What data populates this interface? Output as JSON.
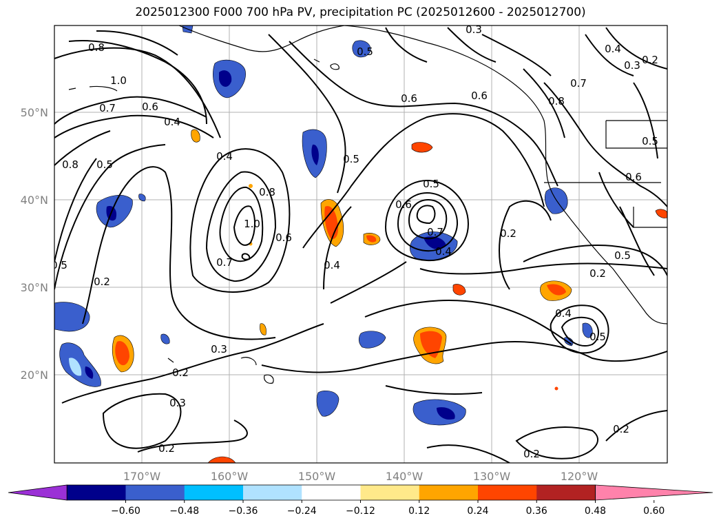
{
  "title": "2025012300 F000 700 hPa PV, precipitation PC (2025012600 - 2025012700)",
  "lat_labels": [
    "50°N",
    "40°N",
    "30°N",
    "20°N"
  ],
  "lon_labels": [
    "170°W",
    "160°W",
    "150°W",
    "140°W",
    "130°W",
    "120°W"
  ],
  "contour_labels": [
    "0.8",
    "1.0",
    "0.7",
    "0.6",
    "0.4",
    "0.8",
    "0.5",
    "0.4",
    "0.8",
    "1.0",
    "0.6",
    "0.7",
    "0.5",
    "0.6",
    "0.6",
    "0.5",
    "0.6",
    "0.7",
    "0.4",
    "0.4",
    "0.2",
    "0.3",
    "0.2",
    "0.3",
    "0.2",
    "0.5",
    "0.2",
    "0.7",
    "0.8",
    "0.4",
    "0.3",
    "0.2",
    "0.5",
    "0.6",
    "0.2",
    "0.4",
    "0.5",
    "0.2",
    "0.2",
    "0.3",
    "0.5",
    "0.5"
  ],
  "colorbar": {
    "colors": [
      "#9b30d6",
      "#00008b",
      "#3a5fcd",
      "#00bfff",
      "#b0e2ff",
      "#ffffff",
      "#ffe98a",
      "#ffa500",
      "#ff4500",
      "#b22222",
      "#ff82ab"
    ],
    "tick_labels": [
      "−0.60",
      "−0.48",
      "−0.36",
      "−0.24",
      "−0.12",
      "0.12",
      "0.24",
      "0.36",
      "0.48",
      "0.60"
    ]
  }
}
